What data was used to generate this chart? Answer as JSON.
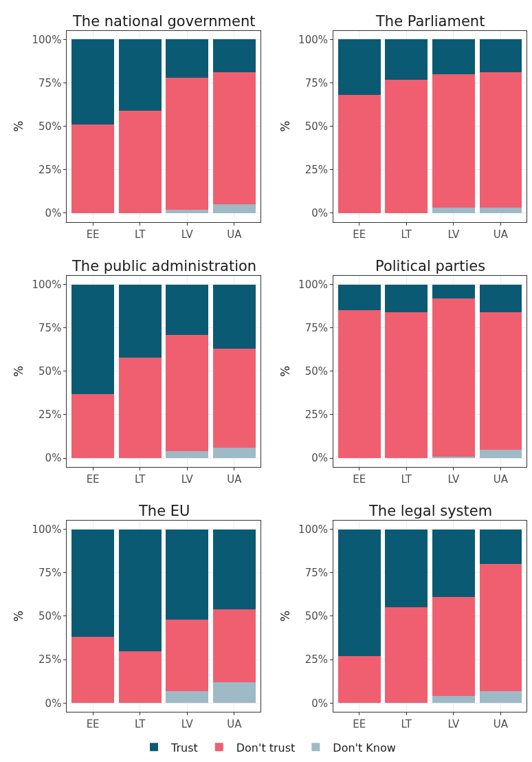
{
  "chart_data": [
    {
      "type": "bar",
      "stacked": true,
      "title": "The national government",
      "ylabel": "%",
      "categories": [
        "EE",
        "LT",
        "LV",
        "UA"
      ],
      "ylim": [
        -5,
        105
      ],
      "yticks": [
        {
          "value": 0,
          "label": "0%"
        },
        {
          "value": 25,
          "label": "25%"
        },
        {
          "value": 50,
          "label": "50%"
        },
        {
          "value": 75,
          "label": "75%"
        },
        {
          "value": 100,
          "label": "100%"
        }
      ],
      "grid": true,
      "legend": "bottom",
      "series": [
        {
          "name": "Don't Know",
          "color": "#9dbac6",
          "values": [
            0,
            0,
            2,
            5
          ]
        },
        {
          "name": "Don't trust",
          "color": "#ef5f70",
          "values": [
            51,
            59,
            76,
            76
          ]
        },
        {
          "name": "Trust",
          "color": "#0b5a73",
          "values": [
            49,
            41,
            22,
            19
          ]
        }
      ]
    },
    {
      "type": "bar",
      "stacked": true,
      "title": "The Parliament",
      "ylabel": "%",
      "categories": [
        "EE",
        "LT",
        "LV",
        "UA"
      ],
      "ylim": [
        -5,
        105
      ],
      "yticks": [
        {
          "value": 0,
          "label": "0%"
        },
        {
          "value": 25,
          "label": "25%"
        },
        {
          "value": 50,
          "label": "50%"
        },
        {
          "value": 75,
          "label": "75%"
        },
        {
          "value": 100,
          "label": "100%"
        }
      ],
      "grid": true,
      "series": [
        {
          "name": "Don't Know",
          "color": "#9dbac6",
          "values": [
            0,
            0,
            3,
            3
          ]
        },
        {
          "name": "Don't trust",
          "color": "#ef5f70",
          "values": [
            68,
            77,
            77,
            78
          ]
        },
        {
          "name": "Trust",
          "color": "#0b5a73",
          "values": [
            32,
            23,
            20,
            19
          ]
        }
      ]
    },
    {
      "type": "bar",
      "stacked": true,
      "title": "The public administration",
      "ylabel": "%",
      "categories": [
        "EE",
        "LT",
        "LV",
        "UA"
      ],
      "ylim": [
        -5,
        105
      ],
      "yticks": [
        {
          "value": 0,
          "label": "0%"
        },
        {
          "value": 25,
          "label": "25%"
        },
        {
          "value": 50,
          "label": "50%"
        },
        {
          "value": 75,
          "label": "75%"
        },
        {
          "value": 100,
          "label": "100%"
        }
      ],
      "grid": true,
      "series": [
        {
          "name": "Don't Know",
          "color": "#9dbac6",
          "values": [
            0,
            0,
            4,
            6
          ]
        },
        {
          "name": "Don't trust",
          "color": "#ef5f70",
          "values": [
            37,
            58,
            67,
            57
          ]
        },
        {
          "name": "Trust",
          "color": "#0b5a73",
          "values": [
            63,
            42,
            29,
            37
          ]
        }
      ]
    },
    {
      "type": "bar",
      "stacked": true,
      "title": "Political parties",
      "ylabel": "%",
      "categories": [
        "EE",
        "LT",
        "LV",
        "UA"
      ],
      "ylim": [
        -5,
        105
      ],
      "yticks": [
        {
          "value": 0,
          "label": "0%"
        },
        {
          "value": 25,
          "label": "25%"
        },
        {
          "value": 50,
          "label": "50%"
        },
        {
          "value": 75,
          "label": "75%"
        },
        {
          "value": 100,
          "label": "100%"
        }
      ],
      "grid": true,
      "series": [
        {
          "name": "Don't Know",
          "color": "#9dbac6",
          "values": [
            0,
            0,
            1,
            5
          ]
        },
        {
          "name": "Don't trust",
          "color": "#ef5f70",
          "values": [
            85,
            84,
            91,
            79
          ]
        },
        {
          "name": "Trust",
          "color": "#0b5a73",
          "values": [
            15,
            16,
            8,
            16
          ]
        }
      ]
    },
    {
      "type": "bar",
      "stacked": true,
      "title": "The EU",
      "ylabel": "%",
      "categories": [
        "EE",
        "LT",
        "LV",
        "UA"
      ],
      "ylim": [
        -5,
        105
      ],
      "yticks": [
        {
          "value": 0,
          "label": "0%"
        },
        {
          "value": 25,
          "label": "25%"
        },
        {
          "value": 50,
          "label": "50%"
        },
        {
          "value": 75,
          "label": "75%"
        },
        {
          "value": 100,
          "label": "100%"
        }
      ],
      "grid": true,
      "series": [
        {
          "name": "Don't Know",
          "color": "#9dbac6",
          "values": [
            0,
            0,
            7,
            12
          ]
        },
        {
          "name": "Don't trust",
          "color": "#ef5f70",
          "values": [
            38,
            30,
            41,
            42
          ]
        },
        {
          "name": "Trust",
          "color": "#0b5a73",
          "values": [
            62,
            70,
            52,
            46
          ]
        }
      ]
    },
    {
      "type": "bar",
      "stacked": true,
      "title": "The legal system",
      "ylabel": "%",
      "categories": [
        "EE",
        "LT",
        "LV",
        "UA"
      ],
      "ylim": [
        -5,
        105
      ],
      "yticks": [
        {
          "value": 0,
          "label": "0%"
        },
        {
          "value": 25,
          "label": "25%"
        },
        {
          "value": 50,
          "label": "50%"
        },
        {
          "value": 75,
          "label": "75%"
        },
        {
          "value": 100,
          "label": "100%"
        }
      ],
      "grid": true,
      "series": [
        {
          "name": "Don't Know",
          "color": "#9dbac6",
          "values": [
            0,
            0,
            4,
            7
          ]
        },
        {
          "name": "Don't trust",
          "color": "#ef5f70",
          "values": [
            27,
            55,
            57,
            73
          ]
        },
        {
          "name": "Trust",
          "color": "#0b5a73",
          "values": [
            73,
            45,
            39,
            20
          ]
        }
      ]
    }
  ]
}
